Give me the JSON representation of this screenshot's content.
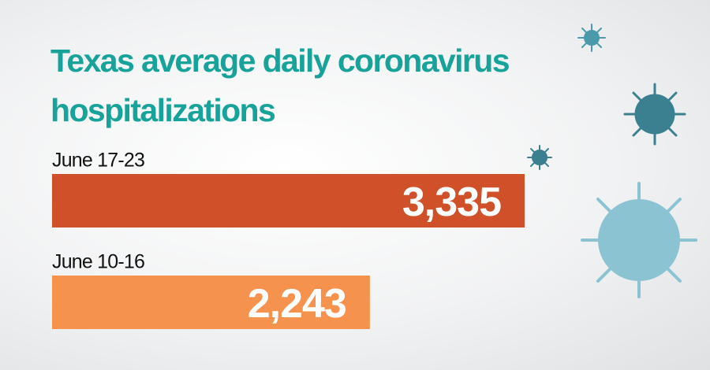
{
  "chart_data": {
    "type": "bar",
    "orientation": "horizontal",
    "title": "Texas average daily coronavirus hospitalizations",
    "categories": [
      "June 17-23",
      "June 10-16"
    ],
    "values": [
      3335,
      2243
    ],
    "value_labels": [
      "3,335",
      "2,243"
    ],
    "colors": [
      "#d0502a",
      "#f5924d"
    ],
    "title_color": "#17a39a"
  }
}
